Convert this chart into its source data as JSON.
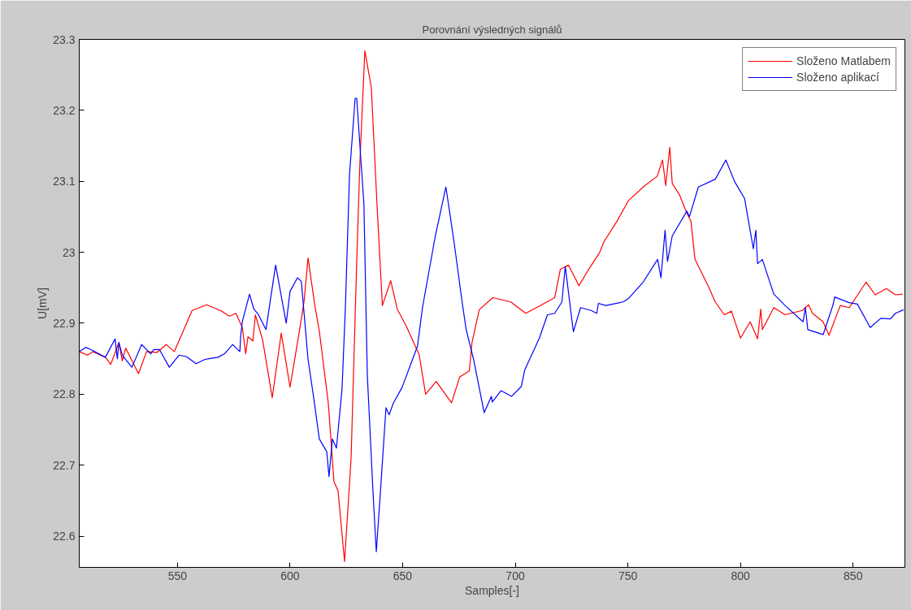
{
  "chart_data": {
    "type": "line",
    "title": "Porovnání výsledných signálů",
    "xlabel": "Samples[-]",
    "ylabel": "U[mV]",
    "xlim": [
      506.4,
      873
    ],
    "xticks": [
      550,
      600,
      650,
      700,
      750,
      800,
      850
    ],
    "ylim": [
      22.556,
      23.3
    ],
    "yticks": [
      22.6,
      22.7,
      22.8,
      22.9,
      23,
      23.1,
      23.2,
      23.3
    ],
    "grid": false,
    "legend": "top right",
    "marker": "none",
    "line_style": "solid",
    "series": [
      {
        "name": "Složeno Matlabem",
        "color": "#ff0000",
        "x": [
          506.4,
          510,
          512.5,
          518,
          520.4,
          524,
          525.5,
          527,
          532.7,
          536.3,
          541,
          545,
          548.6,
          556.5,
          563,
          569.1,
          573.1,
          576,
          578.8,
          580.3,
          581.3,
          583.5,
          584.6,
          587.8,
          592.1,
          596.1,
          600,
          604,
          606.2,
          608,
          611,
          613,
          617,
          619.5,
          621.3,
          624.2,
          627.1,
          629.6,
          631,
          633.2,
          636.1,
          638.6,
          641,
          644.7,
          647.6,
          651.6,
          657.3,
          660.2,
          664.9,
          671.7,
          675.3,
          679.6,
          680.8,
          684,
          690,
          698,
          704.7,
          717.5,
          720,
          723.6,
          728.3,
          732.6,
          737.5,
          739.4,
          745.2,
          750.3,
          757.5,
          763,
          765.4,
          766.8,
          768.6,
          769.7,
          772.9,
          776.2,
          778,
          779.8,
          785.6,
          788.8,
          792.8,
          796,
          800,
          804.3,
          807.6,
          809,
          809.7,
          814.8,
          819.8,
          827.4,
          830.2,
          832,
          836.7,
          839.3,
          844.3,
          848.3,
          855.8,
          859.8,
          864.8,
          868.8,
          872
        ],
        "values": [
          22.86,
          22.855,
          22.86,
          22.852,
          22.842,
          22.873,
          22.847,
          22.865,
          22.829,
          22.86,
          22.859,
          22.87,
          22.86,
          22.918,
          22.926,
          22.918,
          22.91,
          22.914,
          22.894,
          22.857,
          22.881,
          22.875,
          22.912,
          22.877,
          22.795,
          22.886,
          22.81,
          22.886,
          22.93,
          22.992,
          22.925,
          22.889,
          22.787,
          22.677,
          22.664,
          22.564,
          22.709,
          22.987,
          23.125,
          23.284,
          23.232,
          23.068,
          22.925,
          22.96,
          22.92,
          22.896,
          22.856,
          22.8,
          22.818,
          22.788,
          22.824,
          22.833,
          22.873,
          22.919,
          22.936,
          22.93,
          22.914,
          22.936,
          22.976,
          22.982,
          22.953,
          22.976,
          23.0,
          23.015,
          23.044,
          23.073,
          23.094,
          23.107,
          23.13,
          23.094,
          23.148,
          23.097,
          23.081,
          23.055,
          23.044,
          22.99,
          22.953,
          22.93,
          22.912,
          22.917,
          22.879,
          22.902,
          22.878,
          22.92,
          22.891,
          22.922,
          22.912,
          22.918,
          22.926,
          22.914,
          22.902,
          22.883,
          22.925,
          22.922,
          22.958,
          22.94,
          22.949,
          22.94,
          22.941
        ]
      },
      {
        "name": "Složeno aplikací",
        "color": "#0000ff",
        "x": [
          506.4,
          509.3,
          511.5,
          518,
          522.3,
          523.3,
          524,
          525.5,
          529.8,
          534.1,
          538.1,
          539.5,
          542,
          546.4,
          550.7,
          554,
          558.3,
          562.2,
          568,
          570.9,
          574.5,
          577.7,
          578.1,
          578.8,
          582,
          583.9,
          586,
          589.3,
          593.6,
          598.3,
          600,
          603.3,
          605,
          608,
          610.5,
          613,
          616.3,
          617.3,
          618.8,
          620.6,
          623.1,
          624.6,
          626.4,
          628.9,
          629.6,
          632.8,
          634.3,
          636.8,
          638.3,
          640,
          642.6,
          644,
          645.8,
          649.8,
          656.6,
          658.8,
          664.5,
          669.2,
          672.8,
          676.4,
          678.2,
          681.5,
          686.2,
          689.4,
          689.8,
          693.7,
          698.4,
          702.7,
          704.2,
          710.7,
          714.3,
          717.5,
          720.7,
          722.2,
          725.8,
          729,
          733.7,
          736.2,
          736.9,
          740.2,
          747.8,
          750.3,
          756.8,
          763.2,
          764.7,
          766.5,
          767.6,
          769.7,
          776.2,
          777.3,
          781.3,
          788.8,
          793.5,
          797.5,
          801.8,
          805.7,
          806.8,
          807.6,
          809.7,
          814.8,
          819.8,
          827.8,
          828.8,
          829.9,
          836.7,
          841.1,
          841.8,
          848.3,
          851.9,
          857.6,
          862.3,
          866.6,
          868.8,
          872.4
        ],
        "values": [
          22.86,
          22.866,
          22.863,
          22.852,
          22.878,
          22.85,
          22.873,
          22.855,
          22.838,
          22.87,
          22.857,
          22.863,
          22.863,
          22.838,
          22.855,
          22.853,
          22.843,
          22.849,
          22.852,
          22.857,
          22.87,
          22.86,
          22.883,
          22.902,
          22.941,
          22.92,
          22.912,
          22.891,
          22.982,
          22.9,
          22.945,
          22.964,
          22.959,
          22.849,
          22.795,
          22.737,
          22.719,
          22.684,
          22.737,
          22.724,
          22.808,
          22.925,
          23.109,
          23.217,
          23.217,
          23.068,
          22.828,
          22.664,
          22.578,
          22.656,
          22.781,
          22.771,
          22.787,
          22.81,
          22.868,
          22.922,
          23.023,
          23.092,
          23.015,
          22.93,
          22.891,
          22.849,
          22.774,
          22.797,
          22.789,
          22.805,
          22.797,
          22.811,
          22.834,
          22.879,
          22.912,
          22.914,
          22.93,
          22.98,
          22.888,
          22.922,
          22.918,
          22.914,
          22.928,
          22.925,
          22.93,
          22.935,
          22.958,
          22.99,
          22.964,
          23.031,
          22.987,
          23.023,
          23.058,
          23.05,
          23.092,
          23.103,
          23.13,
          23.099,
          23.076,
          23.005,
          23.031,
          22.984,
          22.99,
          22.941,
          22.925,
          22.902,
          22.922,
          22.891,
          22.884,
          22.926,
          22.937,
          22.929,
          22.927,
          22.894,
          22.907,
          22.906,
          22.914,
          22.919
        ]
      }
    ]
  }
}
